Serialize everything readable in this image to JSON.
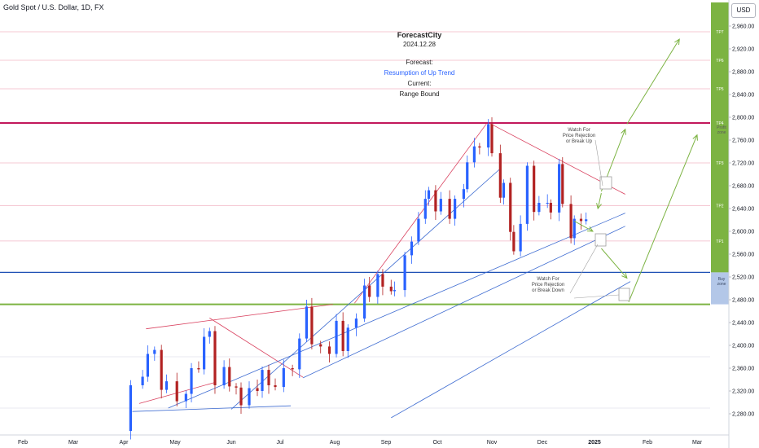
{
  "symbol_label": "Gold Spot / U.S. Dollar, 1D, FX",
  "currency_button": "USD",
  "annotation": {
    "brand": "ForecastCity",
    "date": "2024.12.28",
    "forecast_label": "Forecast:",
    "forecast_value": "Resumption of Up Trend",
    "current_label": "Current:",
    "current_value": "Range Bound"
  },
  "notes": {
    "upper": "Watch For\nPrice Rejection\nor Break Up",
    "lower": "Watch For\nPrice Rejection\nor Break Down"
  },
  "zones": {
    "profit": "Profit\nzone",
    "buy": "Buy\nzone"
  },
  "colors": {
    "accent_blue": "#2962ff",
    "resistance_red": "#c2185b",
    "support_blue": "#1e50b4",
    "profit_green": "#7cb342",
    "buy_zone": "#b3c7e8",
    "candle_up": "#2962ff",
    "candle_down": "#b22222"
  },
  "chart_data": {
    "type": "candlestick",
    "title": "Gold Spot / U.S. Dollar, 1D, FX",
    "ylabel": "USD",
    "ylim": [
      2255,
      3000
    ],
    "y_ticks": [
      2280,
      2320,
      2360,
      2400,
      2440,
      2480,
      2520,
      2560,
      2600,
      2640,
      2680,
      2720,
      2760,
      2800,
      2840,
      2880,
      2920,
      2960
    ],
    "y_tick_labels": [
      "2,280.00",
      "2,320.00",
      "2,360.00",
      "2,400.00",
      "2,440.00",
      "2,480.00",
      "2,520.00",
      "2,560.00",
      "2,600.00",
      "2,640.00",
      "2,680.00",
      "2,720.00",
      "2,760.00",
      "2,800.00",
      "2,840.00",
      "2,880.00",
      "2,920.00",
      "2,960.00"
    ],
    "x_ticks": [
      "Feb",
      "Mar",
      "Apr",
      "May",
      "Jun",
      "Jul",
      "Aug",
      "Sep",
      "Oct",
      "Nov",
      "Dec",
      "2025",
      "Feb",
      "Mar"
    ],
    "month_starts": [
      "2024-02-01",
      "2024-03-01",
      "2024-04-01",
      "2024-05-01",
      "2024-06-01",
      "2024-07-01",
      "2024-08-01",
      "2024-09-01",
      "2024-10-01",
      "2024-11-01",
      "2024-12-01",
      "2025-01-01",
      "2025-02-01",
      "2025-03-01"
    ],
    "grid": true,
    "key_levels": [
      {
        "name": "TP7",
        "price": 2950
      },
      {
        "name": "TP6",
        "price": 2900
      },
      {
        "name": "TP5",
        "price": 2850
      },
      {
        "name": "TP4",
        "price": 2790
      },
      {
        "name": "TP3",
        "price": 2720
      },
      {
        "name": "TP2",
        "price": 2645
      },
      {
        "name": "TP1",
        "price": 2583
      },
      {
        "name": "Buy zone top",
        "price": 2528
      },
      {
        "name": "Buy zone bottom",
        "price": 2472
      }
    ],
    "closes": [
      {
        "date": "2024-04-01",
        "close": 2250
      },
      {
        "date": "2024-04-05",
        "close": 2330
      },
      {
        "date": "2024-04-12",
        "close": 2345
      },
      {
        "date": "2024-04-15",
        "close": 2385
      },
      {
        "date": "2024-04-19",
        "close": 2392
      },
      {
        "date": "2024-04-23",
        "close": 2322
      },
      {
        "date": "2024-04-26",
        "close": 2337
      },
      {
        "date": "2024-05-02",
        "close": 2302
      },
      {
        "date": "2024-05-07",
        "close": 2315
      },
      {
        "date": "2024-05-10",
        "close": 2360
      },
      {
        "date": "2024-05-14",
        "close": 2358
      },
      {
        "date": "2024-05-17",
        "close": 2415
      },
      {
        "date": "2024-05-20",
        "close": 2425
      },
      {
        "date": "2024-05-23",
        "close": 2330
      },
      {
        "date": "2024-05-28",
        "close": 2362
      },
      {
        "date": "2024-05-31",
        "close": 2328
      },
      {
        "date": "2024-06-04",
        "close": 2326
      },
      {
        "date": "2024-06-07",
        "close": 2295
      },
      {
        "date": "2024-06-12",
        "close": 2325
      },
      {
        "date": "2024-06-17",
        "close": 2320
      },
      {
        "date": "2024-06-20",
        "close": 2357
      },
      {
        "date": "2024-06-24",
        "close": 2330
      },
      {
        "date": "2024-06-28",
        "close": 2327
      },
      {
        "date": "2024-07-03",
        "close": 2360
      },
      {
        "date": "2024-07-08",
        "close": 2358
      },
      {
        "date": "2024-07-12",
        "close": 2412
      },
      {
        "date": "2024-07-16",
        "close": 2468
      },
      {
        "date": "2024-07-19",
        "close": 2402
      },
      {
        "date": "2024-07-24",
        "close": 2398
      },
      {
        "date": "2024-07-29",
        "close": 2385
      },
      {
        "date": "2024-08-02",
        "close": 2443
      },
      {
        "date": "2024-08-06",
        "close": 2390
      },
      {
        "date": "2024-08-09",
        "close": 2431
      },
      {
        "date": "2024-08-14",
        "close": 2447
      },
      {
        "date": "2024-08-19",
        "close": 2505
      },
      {
        "date": "2024-08-22",
        "close": 2485
      },
      {
        "date": "2024-08-27",
        "close": 2525
      },
      {
        "date": "2024-08-30",
        "close": 2503
      },
      {
        "date": "2024-09-04",
        "close": 2495
      },
      {
        "date": "2024-09-06",
        "close": 2497
      },
      {
        "date": "2024-09-12",
        "close": 2558
      },
      {
        "date": "2024-09-16",
        "close": 2582
      },
      {
        "date": "2024-09-20",
        "close": 2622
      },
      {
        "date": "2024-09-24",
        "close": 2657
      },
      {
        "date": "2024-09-26",
        "close": 2672
      },
      {
        "date": "2024-09-30",
        "close": 2635
      },
      {
        "date": "2024-10-03",
        "close": 2657
      },
      {
        "date": "2024-10-08",
        "close": 2622
      },
      {
        "date": "2024-10-11",
        "close": 2657
      },
      {
        "date": "2024-10-16",
        "close": 2674
      },
      {
        "date": "2024-10-18",
        "close": 2721
      },
      {
        "date": "2024-10-22",
        "close": 2749
      },
      {
        "date": "2024-10-25",
        "close": 2747
      },
      {
        "date": "2024-10-30",
        "close": 2788
      },
      {
        "date": "2024-11-01",
        "close": 2737
      },
      {
        "date": "2024-11-06",
        "close": 2659
      },
      {
        "date": "2024-11-08",
        "close": 2685
      },
      {
        "date": "2024-11-12",
        "close": 2599
      },
      {
        "date": "2024-11-14",
        "close": 2565
      },
      {
        "date": "2024-11-18",
        "close": 2613
      },
      {
        "date": "2024-11-22",
        "close": 2715
      },
      {
        "date": "2024-11-26",
        "close": 2634
      },
      {
        "date": "2024-11-29",
        "close": 2650
      },
      {
        "date": "2024-12-04",
        "close": 2650
      },
      {
        "date": "2024-12-06",
        "close": 2633
      },
      {
        "date": "2024-12-11",
        "close": 2718
      },
      {
        "date": "2024-12-13",
        "close": 2648
      },
      {
        "date": "2024-12-18",
        "close": 2588
      },
      {
        "date": "2024-12-20",
        "close": 2622
      },
      {
        "date": "2024-12-24",
        "close": 2618
      },
      {
        "date": "2024-12-27",
        "close": 2621
      }
    ]
  }
}
